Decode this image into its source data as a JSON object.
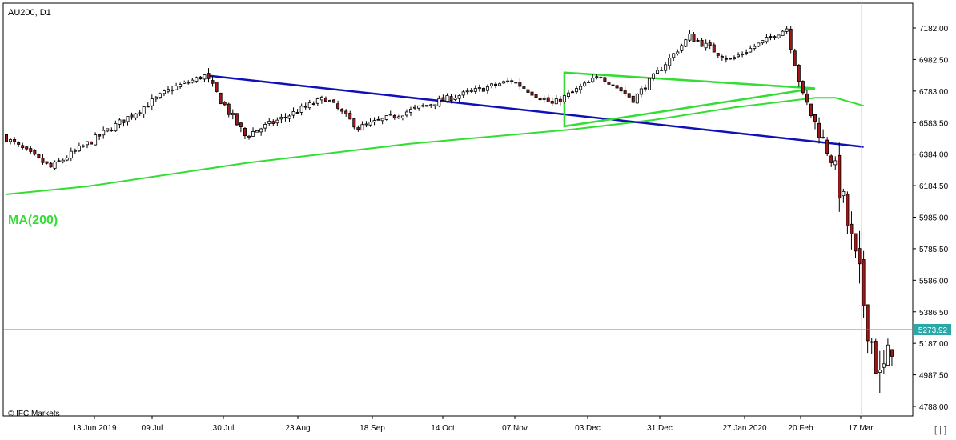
{
  "symbol_label": "AU200, D1",
  "indicator_label": "MA(200)",
  "watermark": "© IFC Markets",
  "current_price_label": "5273.92",
  "corner_glyph": "[ | ]",
  "colors": {
    "background": "#ffffff",
    "bull_candle": "#ffffff",
    "bear_candle": "#a01818",
    "candle_outline": "#000000",
    "ma_line": "#33dd33",
    "trendline": "#1010b8",
    "triangle": "#33dd33",
    "price_line": "#2aa8a8",
    "price_tag": "#2aa8a8"
  },
  "chart_data": {
    "type": "candlestick",
    "title": "AU200, D1",
    "y_tick_labels": [
      "7182.00",
      "6982.50",
      "6783.00",
      "6583.50",
      "6384.00",
      "6184.50",
      "5985.00",
      "5785.50",
      "5586.00",
      "5386.50",
      "5187.00",
      "4987.50",
      "4788.00"
    ],
    "x_tick_labels": [
      "13 Jun 2019",
      "09 Jul",
      "30 Jul",
      "23 Aug",
      "18 Sep",
      "14 Oct",
      "07 Nov",
      "03 Dec",
      "31 Dec",
      "27 Jan 2020",
      "20 Feb",
      "17 Mar"
    ],
    "ylim": [
      4770,
      7230
    ],
    "grid": false,
    "current_price": 5273.92,
    "segments": [
      {
        "bars": 12,
        "from": 6500,
        "to": 6300,
        "amp": 40
      },
      {
        "bars": 30,
        "from": 6300,
        "to": 6800,
        "amp": 45
      },
      {
        "bars": 8,
        "from": 6800,
        "to": 6880,
        "amp": 35
      },
      {
        "bars": 10,
        "from": 6880,
        "to": 6500,
        "amp": 60
      },
      {
        "bars": 20,
        "from": 6500,
        "to": 6740,
        "amp": 45
      },
      {
        "bars": 8,
        "from": 6740,
        "to": 6550,
        "amp": 40
      },
      {
        "bars": 20,
        "from": 6550,
        "to": 6720,
        "amp": 40
      },
      {
        "bars": 18,
        "from": 6720,
        "to": 6850,
        "amp": 40
      },
      {
        "bars": 10,
        "from": 6850,
        "to": 6700,
        "amp": 45
      },
      {
        "bars": 12,
        "from": 6700,
        "to": 6880,
        "amp": 40
      },
      {
        "bars": 8,
        "from": 6880,
        "to": 6730,
        "amp": 40
      },
      {
        "bars": 14,
        "from": 6730,
        "to": 7130,
        "amp": 40
      },
      {
        "bars": 10,
        "from": 7130,
        "to": 6980,
        "amp": 45
      },
      {
        "bars": 14,
        "from": 6980,
        "to": 7180,
        "amp": 35
      },
      {
        "bars": 4,
        "from": 7180,
        "to": 6750,
        "amp": 60
      },
      {
        "bars": 8,
        "from": 6750,
        "to": 6300,
        "amp": 90
      },
      {
        "bars": 5,
        "from": 6300,
        "to": 5700,
        "amp": 200
      },
      {
        "bars": 6,
        "from": 5700,
        "to": 4950,
        "amp": 250
      },
      {
        "bars": 3,
        "from": 4950,
        "to": 5180,
        "amp": 180
      }
    ],
    "ma200": [
      [
        0,
        6130
      ],
      [
        20,
        6180
      ],
      [
        60,
        6330
      ],
      [
        100,
        6450
      ],
      [
        140,
        6540
      ],
      [
        160,
        6600
      ],
      [
        180,
        6680
      ],
      [
        200,
        6740
      ],
      [
        205,
        6740
      ],
      [
        212,
        6690
      ]
    ],
    "trendline": [
      [
        50,
        6880
      ],
      [
        212,
        6430
      ]
    ],
    "triangle": [
      [
        138,
        6900
      ],
      [
        200,
        6800
      ],
      [
        138,
        6560
      ]
    ]
  }
}
